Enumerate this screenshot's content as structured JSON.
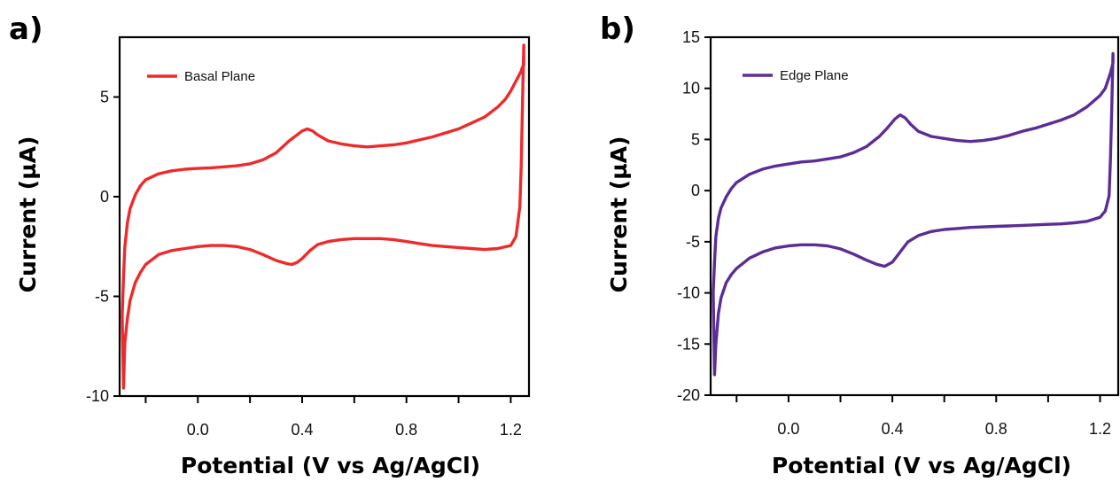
{
  "chart_data": [
    {
      "type": "line",
      "panel_label": "a)",
      "title": "",
      "xlabel": "Potential (V vs Ag/AgCl)",
      "ylabel": "Current (µA)",
      "xlim": [
        -0.3,
        1.27
      ],
      "ylim": [
        -10,
        8
      ],
      "xticks": [
        0.0,
        0.4,
        0.8,
        1.2
      ],
      "xtick_labels": [
        "0.0",
        "0.4",
        "0.8",
        "1.2"
      ],
      "xminor_ticks": [
        -0.2,
        0.2,
        0.6,
        1.0
      ],
      "yticks": [
        -10,
        -5,
        0,
        5
      ],
      "ytick_labels": [
        "-10",
        "-5",
        "0",
        "5"
      ],
      "grid": false,
      "legend_position": "top-left",
      "series": [
        {
          "name": "Basal Plane",
          "color": "#ee2a2a",
          "x": [
            1.25,
            1.245,
            1.24,
            1.22,
            1.2,
            1.18,
            1.15,
            1.1,
            1.05,
            1.0,
            0.95,
            0.9,
            0.85,
            0.8,
            0.75,
            0.7,
            0.65,
            0.6,
            0.55,
            0.5,
            0.46,
            0.44,
            0.42,
            0.4,
            0.38,
            0.35,
            0.3,
            0.25,
            0.2,
            0.15,
            0.1,
            0.05,
            0.0,
            -0.05,
            -0.1,
            -0.15,
            -0.2,
            -0.22,
            -0.24,
            -0.26,
            -0.27,
            -0.28,
            -0.285,
            -0.29,
            -0.285,
            -0.28,
            -0.27,
            -0.26,
            -0.24,
            -0.22,
            -0.2,
            -0.15,
            -0.1,
            -0.05,
            0.0,
            0.05,
            0.1,
            0.15,
            0.2,
            0.25,
            0.3,
            0.34,
            0.36,
            0.38,
            0.4,
            0.43,
            0.46,
            0.5,
            0.55,
            0.6,
            0.65,
            0.7,
            0.75,
            0.8,
            0.85,
            0.9,
            0.95,
            1.0,
            1.05,
            1.1,
            1.15,
            1.2,
            1.22,
            1.235,
            1.24,
            1.245,
            1.25,
            1.25
          ],
          "y": [
            6.6,
            6.5,
            6.3,
            5.8,
            5.3,
            4.9,
            4.5,
            4.0,
            3.7,
            3.4,
            3.2,
            3.0,
            2.85,
            2.7,
            2.6,
            2.55,
            2.5,
            2.55,
            2.65,
            2.8,
            3.1,
            3.3,
            3.4,
            3.3,
            3.1,
            2.8,
            2.2,
            1.85,
            1.65,
            1.55,
            1.5,
            1.45,
            1.42,
            1.38,
            1.3,
            1.15,
            0.85,
            0.55,
            0.1,
            -0.6,
            -1.3,
            -2.5,
            -4.0,
            -6.0,
            -9.6,
            -7.3,
            -6.1,
            -5.2,
            -4.3,
            -3.8,
            -3.4,
            -2.9,
            -2.7,
            -2.6,
            -2.5,
            -2.45,
            -2.45,
            -2.5,
            -2.65,
            -2.9,
            -3.2,
            -3.35,
            -3.4,
            -3.3,
            -3.1,
            -2.7,
            -2.4,
            -2.25,
            -2.15,
            -2.1,
            -2.1,
            -2.1,
            -2.15,
            -2.25,
            -2.35,
            -2.45,
            -2.5,
            -2.55,
            -2.6,
            -2.65,
            -2.6,
            -2.45,
            -2.0,
            -0.5,
            1.5,
            4.5,
            7.6,
            6.6
          ]
        }
      ]
    },
    {
      "type": "line",
      "panel_label": "b)",
      "title": "",
      "xlabel": "Potential (V vs Ag/AgCl)",
      "ylabel": "Current (µA)",
      "xlim": [
        -0.3,
        1.27
      ],
      "ylim": [
        -20,
        15
      ],
      "xticks": [
        0.0,
        0.4,
        0.8,
        1.2
      ],
      "xtick_labels": [
        "0.0",
        "0.4",
        "0.8",
        "1.2"
      ],
      "xminor_ticks": [
        -0.2,
        0.2,
        0.6,
        1.0
      ],
      "yticks": [
        -20,
        -15,
        -10,
        -5,
        0,
        5,
        10,
        15
      ],
      "ytick_labels": [
        "-20",
        "-15",
        "-10",
        "-5",
        "0",
        "5",
        "10",
        "15"
      ],
      "grid": false,
      "legend_position": "top-left",
      "series": [
        {
          "name": "Edge Plane",
          "color": "#5b2d96",
          "x": [
            1.25,
            1.245,
            1.24,
            1.22,
            1.2,
            1.15,
            1.1,
            1.05,
            1.0,
            0.95,
            0.9,
            0.85,
            0.8,
            0.75,
            0.7,
            0.65,
            0.6,
            0.55,
            0.5,
            0.47,
            0.45,
            0.43,
            0.41,
            0.38,
            0.35,
            0.3,
            0.25,
            0.2,
            0.15,
            0.1,
            0.05,
            0.0,
            -0.05,
            -0.1,
            -0.15,
            -0.2,
            -0.22,
            -0.24,
            -0.26,
            -0.27,
            -0.28,
            -0.285,
            -0.29,
            -0.285,
            -0.28,
            -0.27,
            -0.26,
            -0.24,
            -0.22,
            -0.2,
            -0.15,
            -0.1,
            -0.05,
            0.0,
            0.05,
            0.1,
            0.15,
            0.2,
            0.25,
            0.3,
            0.34,
            0.37,
            0.4,
            0.43,
            0.46,
            0.5,
            0.55,
            0.6,
            0.65,
            0.7,
            0.75,
            0.8,
            0.85,
            0.9,
            0.95,
            1.0,
            1.05,
            1.1,
            1.15,
            1.2,
            1.22,
            1.235,
            1.24,
            1.245,
            1.25,
            1.25
          ],
          "y": [
            12.5,
            12.0,
            11.5,
            10.0,
            9.3,
            8.2,
            7.4,
            6.9,
            6.5,
            6.1,
            5.8,
            5.4,
            5.1,
            4.9,
            4.8,
            4.9,
            5.1,
            5.3,
            5.8,
            6.5,
            7.1,
            7.4,
            7.0,
            6.1,
            5.3,
            4.3,
            3.7,
            3.3,
            3.1,
            2.9,
            2.8,
            2.6,
            2.4,
            2.1,
            1.6,
            0.8,
            0.2,
            -0.6,
            -1.7,
            -2.7,
            -4.5,
            -7.0,
            -10.0,
            -18.0,
            -15.0,
            -12.0,
            -10.5,
            -9.0,
            -8.2,
            -7.6,
            -6.6,
            -6.0,
            -5.6,
            -5.4,
            -5.3,
            -5.3,
            -5.4,
            -5.7,
            -6.2,
            -6.8,
            -7.2,
            -7.4,
            -7.0,
            -6.0,
            -5.0,
            -4.4,
            -4.0,
            -3.8,
            -3.7,
            -3.6,
            -3.55,
            -3.5,
            -3.45,
            -3.4,
            -3.35,
            -3.3,
            -3.25,
            -3.15,
            -3.0,
            -2.6,
            -2.0,
            -0.5,
            3.0,
            8.0,
            13.4,
            12.5
          ]
        }
      ]
    }
  ]
}
